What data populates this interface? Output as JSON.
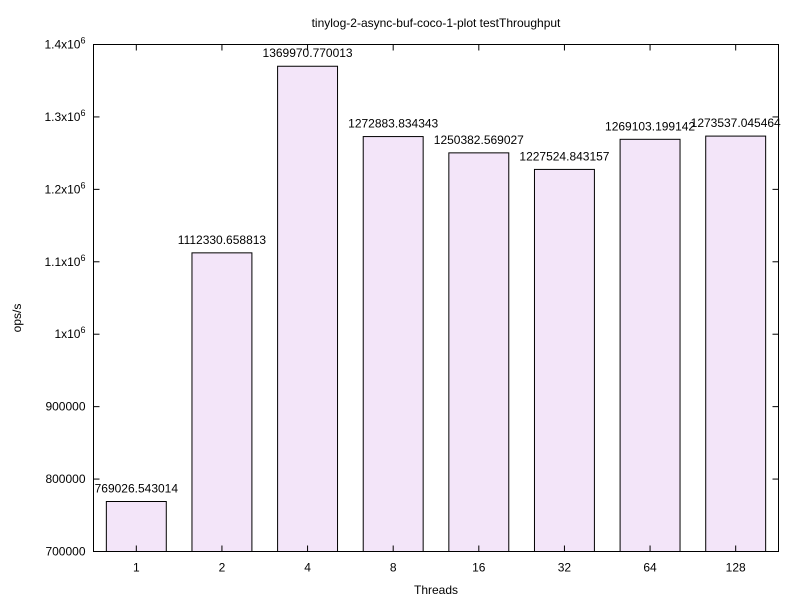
{
  "chart_data": {
    "type": "bar",
    "title": "tinylog-2-async-buf-coco-1-plot testThroughput",
    "xlabel": "Threads",
    "ylabel": "ops/s",
    "categories": [
      "1",
      "2",
      "4",
      "8",
      "16",
      "32",
      "64",
      "128"
    ],
    "values": [
      769026.543014,
      1112330.658813,
      1369970.770013,
      1272883.834343,
      1250382.569027,
      1227524.843157,
      1269103.199142,
      1273537.045464
    ],
    "value_labels": [
      "769026.543014",
      "1112330.658813",
      "1369970.770013",
      "1272883.834343",
      "1250382.569027",
      "1227524.843157",
      "1269103.199142",
      "1273537.045464"
    ],
    "ylim": [
      700000,
      1400000
    ],
    "yticks": [
      {
        "value": 700000,
        "base": "700000",
        "sup": ""
      },
      {
        "value": 800000,
        "base": "800000",
        "sup": ""
      },
      {
        "value": 900000,
        "base": "900000",
        "sup": ""
      },
      {
        "value": 1000000,
        "base": "1x10",
        "sup": "6"
      },
      {
        "value": 1100000,
        "base": "1.1x10",
        "sup": "6"
      },
      {
        "value": 1200000,
        "base": "1.2x10",
        "sup": "6"
      },
      {
        "value": 1300000,
        "base": "1.3x10",
        "sup": "6"
      },
      {
        "value": 1400000,
        "base": "1.4x10",
        "sup": "6"
      }
    ],
    "grid": false,
    "legend": "none",
    "bar_fill": "#f3e5f9",
    "bar_stroke": "#000000"
  }
}
